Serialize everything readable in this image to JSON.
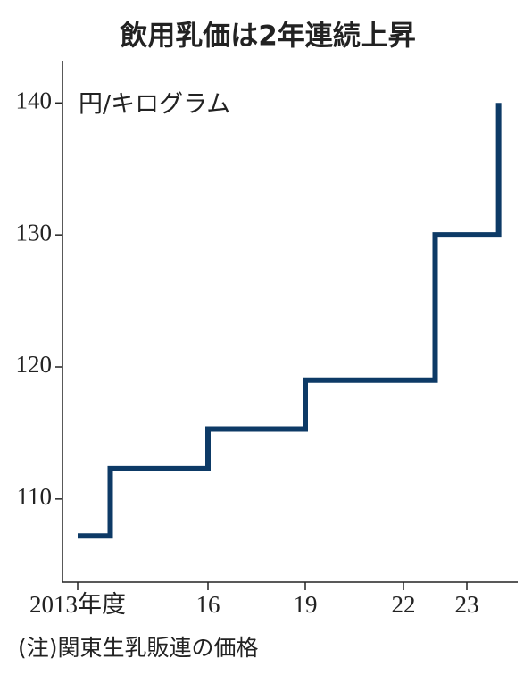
{
  "chart_data": {
    "type": "line",
    "step": true,
    "title": "飲用乳価は2年連続上昇",
    "y_label": "円/キログラム",
    "note": "(注)関東生乳販連の価格",
    "x": [
      2013,
      2013.75,
      2016,
      2019,
      2022.5,
      2023.5
    ],
    "series": [
      {
        "color": "#0d3a66",
        "values": [
          107.2,
          112.3,
          115.3,
          119,
          130,
          140
        ]
      }
    ],
    "xlim": [
      2012.65,
      2023.8
    ],
    "xticks": [
      {
        "value": 2013,
        "label": "2013年度"
      },
      {
        "value": 2016,
        "label": "16"
      },
      {
        "value": 2019,
        "label": "19"
      },
      {
        "value": 2022,
        "label": "22"
      },
      {
        "value": 2023,
        "label": "23"
      }
    ],
    "ylim": [
      103.7,
      143.2
    ],
    "yticks": [
      110,
      120,
      130,
      140
    ]
  }
}
